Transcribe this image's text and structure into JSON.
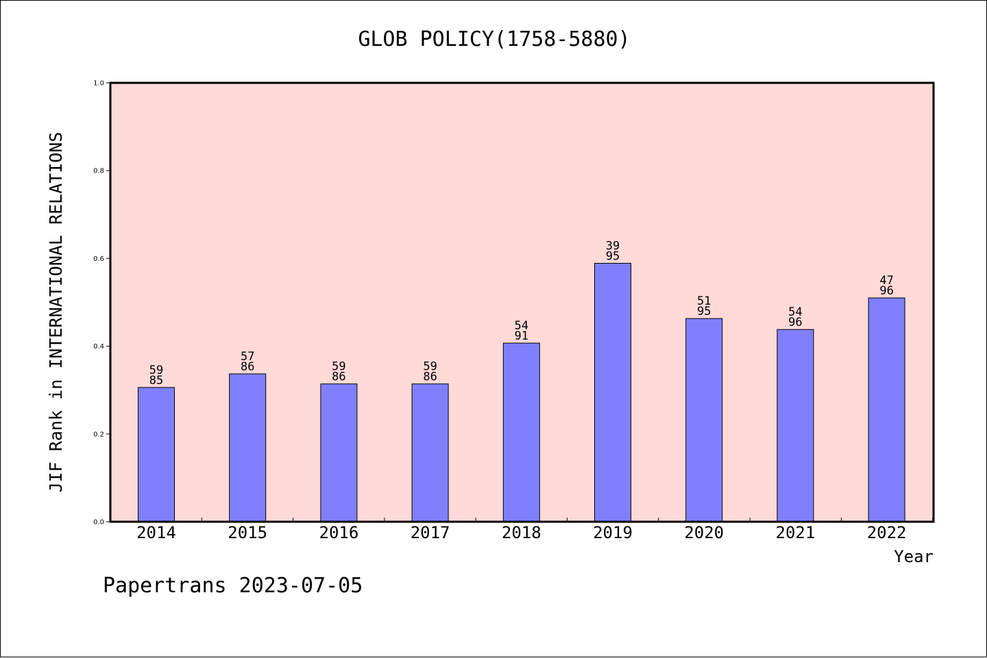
{
  "colors": {
    "plot_background": "#ffdad7",
    "bar_fill": "#8080ff",
    "bar_stroke": "#000000",
    "axis": "#000000"
  },
  "footer": "Papertrans 2023-07-05",
  "chart_data": {
    "type": "bar",
    "title": "GLOB POLICY(1758-5880)",
    "xlabel": "Year",
    "ylabel": "JIF Rank in INTERNATIONAL RELATIONS",
    "ylim": [
      0,
      1.0
    ],
    "yticks": [
      "0.0",
      "0.2",
      "0.4",
      "0.6",
      "0.8",
      "1.0"
    ],
    "grid": false,
    "categories": [
      "2014",
      "2015",
      "2016",
      "2017",
      "2018",
      "2019",
      "2020",
      "2021",
      "2022"
    ],
    "values": [
      0.306,
      0.337,
      0.314,
      0.314,
      0.407,
      0.589,
      0.463,
      0.438,
      0.51
    ],
    "rank_labels": [
      [
        "59",
        "85"
      ],
      [
        "57",
        "86"
      ],
      [
        "59",
        "86"
      ],
      [
        "59",
        "86"
      ],
      [
        "54",
        "91"
      ],
      [
        "39",
        "95"
      ],
      [
        "51",
        "95"
      ],
      [
        "54",
        "96"
      ],
      [
        "47",
        "96"
      ]
    ]
  }
}
